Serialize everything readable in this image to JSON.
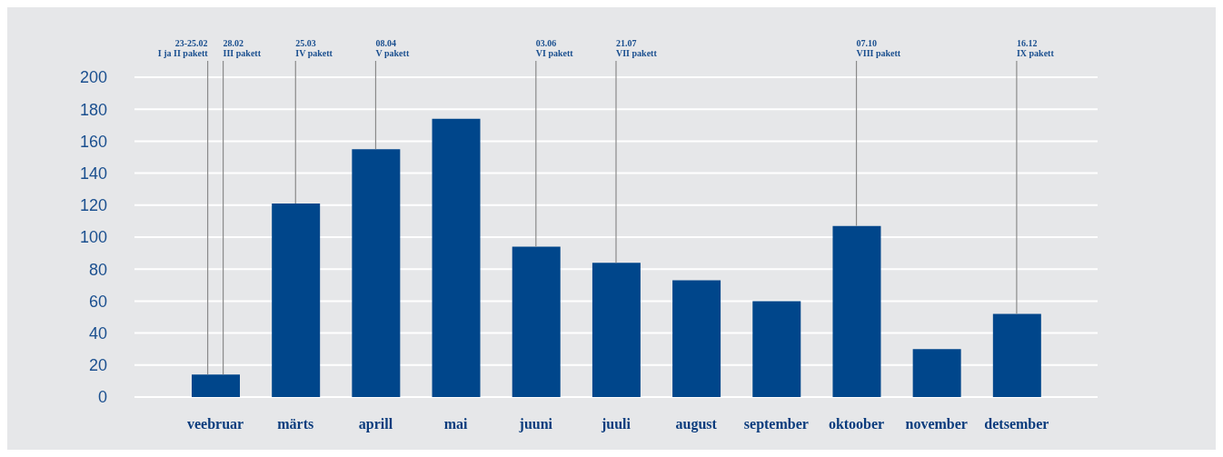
{
  "chart_data": {
    "type": "bar",
    "categories": [
      "veebruar",
      "märts",
      "aprill",
      "mai",
      "juuni",
      "juuli",
      "august",
      "september",
      "oktoober",
      "november",
      "detsember"
    ],
    "values": [
      14,
      121,
      155,
      174,
      94,
      84,
      73,
      60,
      107,
      30,
      52
    ],
    "color": "#00468b",
    "ylim": [
      0,
      200
    ],
    "yticks": [
      0,
      20,
      40,
      60,
      80,
      100,
      120,
      140,
      160,
      180,
      200
    ],
    "grid": "y",
    "legend": false,
    "annotations": [
      {
        "text": "23-25.02\nI ja II pakett",
        "x": "veebruar",
        "y": 14
      },
      {
        "text": "28.02\nIII pakett",
        "x": "veebruar",
        "y": 14
      },
      {
        "text": "25.03\nIV pakett",
        "x": "märts",
        "y": 121
      },
      {
        "text": "08.04\nV pakett",
        "x": "aprill",
        "y": 155
      },
      {
        "text": "03.06\nVI pakett",
        "x": "juuni",
        "y": 94
      },
      {
        "text": "21.07\nVII pakett",
        "x": "juuli",
        "y": 84
      },
      {
        "text": "07.10\nVIII pakett",
        "x": "oktoober",
        "y": 107
      },
      {
        "text": "16.12\nIX pakett",
        "x": "detsember",
        "y": 52
      }
    ]
  }
}
